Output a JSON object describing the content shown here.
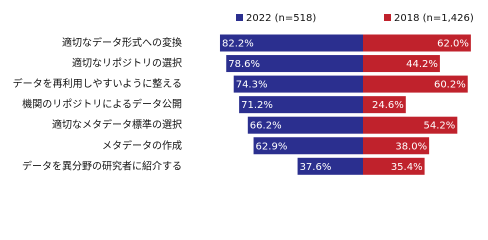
{
  "chart_data": {
    "type": "diverging-bar",
    "categories": [
      "適切なデータ形式への変換",
      "適切なリポジトリの選択",
      "データを再利用しやすいように整える",
      "機関のリポジトリによるデータ公開",
      "適切なメタデータ標準の選択",
      "メタデータの作成",
      "データを異分野の研究者に紹介する"
    ],
    "series": [
      {
        "name": "2022 (n=518)",
        "color": "#2b2f8f",
        "side": "left",
        "values": [
          82.2,
          78.6,
          74.3,
          71.2,
          66.2,
          62.9,
          37.6
        ],
        "value_labels": [
          "82.2%",
          "78.6%",
          "74.3%",
          "71.2%",
          "66.2%",
          "62.9%",
          "37.6%"
        ]
      },
      {
        "name": "2018 (n=1,426)",
        "color": "#c0222c",
        "side": "right",
        "values": [
          62.0,
          44.2,
          60.2,
          24.6,
          54.2,
          38.0,
          35.4
        ],
        "value_labels": [
          "62.0%",
          "44.2%",
          "60.2%",
          "24.6%",
          "54.2%",
          "38.0%",
          "35.4%"
        ]
      }
    ]
  }
}
